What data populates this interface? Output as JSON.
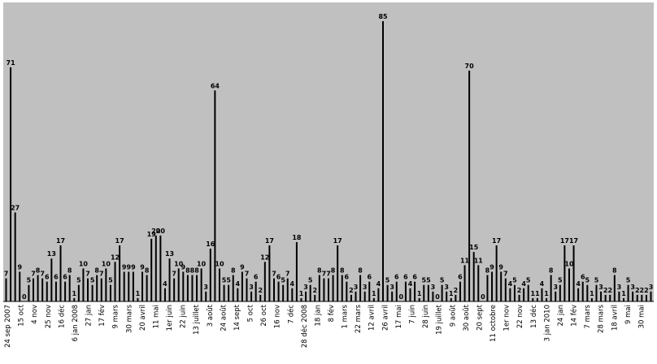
{
  "chart_data": {
    "type": "bar",
    "title": "",
    "xlabel": "",
    "ylabel": "",
    "ylim": [
      0,
      86
    ],
    "grid": false,
    "legend": "none",
    "colors": {
      "plot_background": "#c0c0c0",
      "bar": "#000000",
      "page_background": "#ffffff"
    },
    "tick_labels": [
      "24 sep 2007",
      "15 oct",
      "4 nov",
      "25 nov",
      "16 déc",
      "6 jan 2008",
      "27 jan",
      "17 fév",
      "9 mars",
      "30 mars",
      "20 avril",
      "11 mai",
      "1er juin",
      "22 juin",
      "13 juillet",
      "3 août",
      "24 août",
      "14 sept",
      "5 oct",
      "26 oct",
      "16 nov",
      "7 déc",
      "28 déc 2008",
      "18 jan",
      "8 fév",
      "1 mars",
      "22 mars",
      "12 avril",
      "26 avril",
      "17 mai",
      "7 juin",
      "28 juin",
      "19 juillet",
      "9 août",
      "30 août",
      "20 sept",
      "11 octobre",
      "1er nov",
      "22 nov",
      "13 déc",
      "3 jan 2010",
      "24 jan",
      "14 fév",
      "7 mars",
      "28 mars",
      "18 avril",
      "9 mai",
      "30 mai"
    ],
    "values": [
      7,
      71,
      27,
      9,
      0,
      5,
      7,
      8,
      7,
      6,
      13,
      6,
      17,
      6,
      8,
      1,
      5,
      10,
      7,
      5,
      8,
      7,
      10,
      5,
      12,
      17,
      9,
      9,
      9,
      1,
      9,
      8,
      19,
      20,
      20,
      4,
      13,
      7,
      10,
      9,
      8,
      8,
      8,
      10,
      3,
      16,
      64,
      10,
      5,
      5,
      8,
      4,
      9,
      7,
      3,
      6,
      2,
      12,
      17,
      7,
      6,
      5,
      7,
      4,
      18,
      1,
      3,
      5,
      2,
      8,
      7,
      7,
      8,
      17,
      8,
      6,
      2,
      3,
      8,
      3,
      6,
      1,
      4,
      85,
      5,
      3,
      6,
      0,
      6,
      4,
      6,
      1,
      5,
      5,
      3,
      0,
      5,
      3,
      1,
      2,
      6,
      11,
      70,
      15,
      11,
      0,
      8,
      9,
      17,
      9,
      7,
      4,
      5,
      2,
      4,
      5,
      1,
      1,
      4,
      1,
      8,
      3,
      5,
      17,
      10,
      17,
      4,
      6,
      5,
      1,
      5,
      3,
      2,
      2,
      8,
      3,
      1,
      5,
      3,
      2,
      2,
      2,
      3
    ]
  }
}
